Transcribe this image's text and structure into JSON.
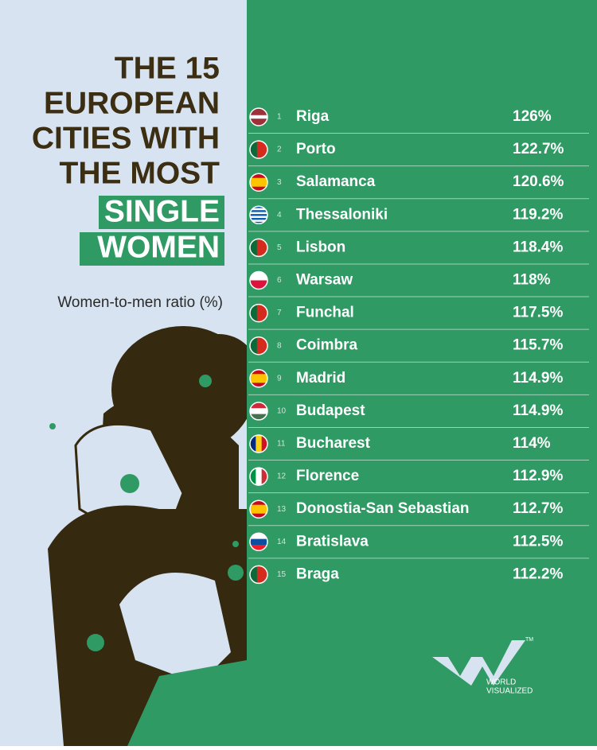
{
  "header": {
    "title_lines": [
      "THE 15",
      "EUROPEAN",
      "CITIES WITH",
      "THE MOST"
    ],
    "highlight_lines": [
      "SINGLE",
      "WOMEN"
    ],
    "subtitle": "Women-to-men ratio (%)"
  },
  "table": {
    "rows": [
      [
        "1",
        "Riga",
        "126%"
      ],
      [
        "2",
        "Porto",
        "122.7%"
      ],
      [
        "3",
        "Salamanca",
        "120.6%"
      ],
      [
        "4",
        "Thessaloniki",
        "119.2%"
      ],
      [
        "5",
        "Lisbon",
        "118.4%"
      ],
      [
        "6",
        "Warsaw",
        "118%"
      ],
      [
        "7",
        "Funchal",
        "117.5%"
      ],
      [
        "8",
        "Coimbra",
        "115.7%"
      ],
      [
        "9",
        "Madrid",
        "114.9%"
      ],
      [
        "10",
        "Budapest",
        "114.9%"
      ],
      [
        "11",
        "Bucharest",
        "114%"
      ],
      [
        "12",
        "Florence",
        "112.9%"
      ],
      [
        "13",
        "Donostia-San Sebastian",
        "112.7%"
      ],
      [
        "14",
        "Bratislava",
        "112.5%"
      ],
      [
        "15",
        "Braga",
        "112.2%"
      ]
    ]
  },
  "logo": {
    "line1": "WORLD",
    "line2": "VISUALIZED",
    "mark": "TM"
  }
}
